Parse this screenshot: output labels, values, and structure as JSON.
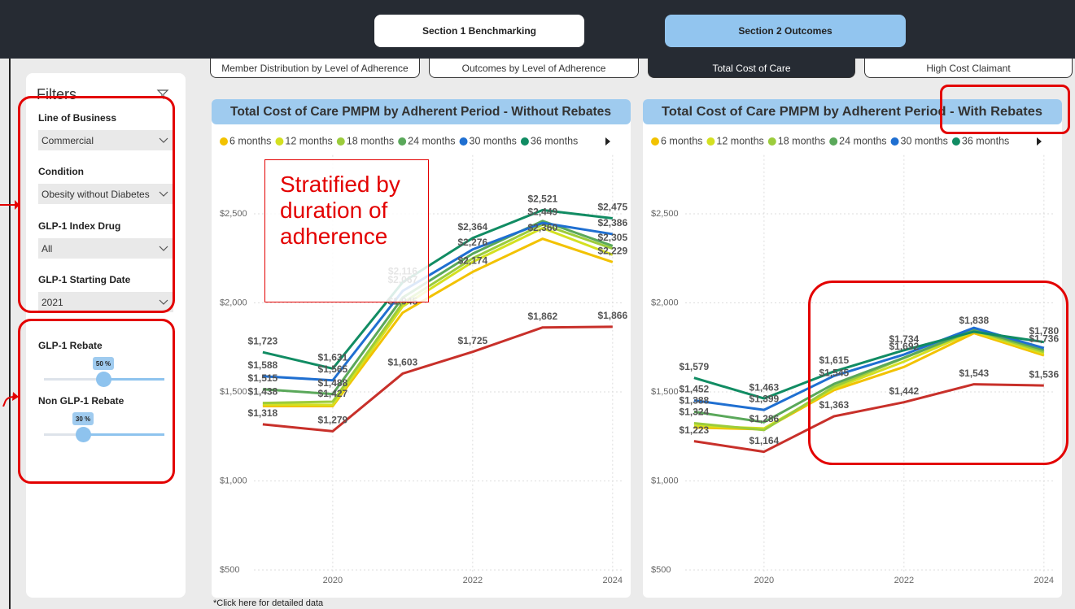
{
  "nav": {
    "buttons": [
      "Section 1 Benchmarking",
      "Section 2 Outcomes"
    ],
    "tabs": [
      "Member Distribution by Level of Adherence",
      "Outcomes by Level of Adherence",
      "Total Cost of Care",
      "High Cost Claimant"
    ]
  },
  "filters": {
    "title": "Filters",
    "fields": [
      {
        "label": "Line of Business",
        "value": "Commercial"
      },
      {
        "label": "Condition",
        "value": "Obesity without Diabetes"
      },
      {
        "label": "GLP-1 Index Drug",
        "value": "All"
      },
      {
        "label": "GLP-1 Starting Date",
        "value": "2021"
      }
    ],
    "sliders": [
      {
        "label": "GLP-1 Rebate",
        "value_label": "50 %"
      },
      {
        "label": "Non GLP-1 Rebate",
        "value_label": "30 %"
      }
    ]
  },
  "annotation": "Stratified by duration of adherence",
  "footer": "*Click here for detailed data",
  "chart_data": [
    {
      "type": "line",
      "title": "Total Cost of Care PMPM by Adherent Period - Without Rebates",
      "x": [
        2019,
        2020,
        2021,
        2022,
        2023,
        2024
      ],
      "xlim": [
        2018.35,
        2024.2
      ],
      "xticks": [
        2020,
        2022,
        2024
      ],
      "ylim": [
        480,
        2830
      ],
      "yticks": [
        {
          "value": 500,
          "label": "$500"
        },
        {
          "value": 1000,
          "label": "$1,000"
        },
        {
          "value": 1500,
          "label": "$1,500"
        },
        {
          "value": 2000,
          "label": "$2,000"
        },
        {
          "value": 2500,
          "label": "$2,500"
        }
      ],
      "grid": true,
      "series": [
        {
          "name": "6 months",
          "color": "#f2c200",
          "values": [
            1420,
            1420,
            1945,
            2174,
            2360,
            2229
          ],
          "value_labels": [
            null,
            null,
            "$1,945",
            "$2,174",
            "$2,360",
            "$2,229"
          ]
        },
        {
          "name": "12 months",
          "color": "#d4e021",
          "values": [
            1430,
            1427,
            1980,
            2230,
            2420,
            2270
          ],
          "value_labels": [
            null,
            "$1,427",
            null,
            null,
            null,
            null
          ]
        },
        {
          "name": "18 months",
          "color": "#9ccc3c",
          "values": [
            1438,
            1445,
            2000,
            2250,
            2440,
            2305
          ],
          "value_labels": [
            "$1,438",
            null,
            null,
            null,
            null,
            "$2,305"
          ]
        },
        {
          "name": "24 months",
          "color": "#5aa85a",
          "values": [
            1515,
            1488,
            2030,
            2276,
            2460,
            2320
          ],
          "value_labels": [
            "$1,515",
            "$1,488",
            null,
            "$2,276",
            null,
            null
          ]
        },
        {
          "name": "30 months",
          "color": "#1f6fd1",
          "values": [
            1588,
            1565,
            2067,
            2300,
            2449,
            2386
          ],
          "value_labels": [
            "$1,588",
            "$1,565",
            "$2,067",
            null,
            "$2,449",
            "$2,386"
          ]
        },
        {
          "name": "36 months",
          "color": "#118c63",
          "values": [
            1723,
            1631,
            2116,
            2364,
            2521,
            2475
          ],
          "value_labels": [
            "$1,723",
            "$1,631",
            "$2,116",
            "$2,364",
            "$2,521",
            "$2,475"
          ]
        },
        {
          "color": "#c8302a",
          "values": [
            1318,
            1279,
            1603,
            1725,
            1862,
            1866
          ],
          "value_labels": [
            "$1,318",
            "$1,279",
            "$1,603",
            "$1,725",
            "$1,862",
            "$1,866"
          ]
        }
      ]
    },
    {
      "type": "line",
      "title": "Total Cost of Care PMPM by Adherent Period - With Rebates",
      "x": [
        2019,
        2020,
        2021,
        2022,
        2023,
        2024
      ],
      "xlim": [
        2018.35,
        2024.2
      ],
      "xticks": [
        2020,
        2022,
        2024
      ],
      "ylim": [
        480,
        2830
      ],
      "yticks": [
        {
          "value": 500,
          "label": "$500"
        },
        {
          "value": 1000,
          "label": "$1,000"
        },
        {
          "value": 1500,
          "label": "$1,500"
        },
        {
          "value": 2000,
          "label": "$2,000"
        },
        {
          "value": 2500,
          "label": "$2,500"
        }
      ],
      "grid": true,
      "series": [
        {
          "name": "6 months",
          "color": "#f2c200",
          "values": [
            1300,
            1290,
            1510,
            1640,
            1830,
            1705
          ],
          "value_labels": [
            null,
            null,
            null,
            null,
            null,
            null
          ]
        },
        {
          "name": "12 months",
          "color": "#d4e021",
          "values": [
            1310,
            1295,
            1520,
            1670,
            1840,
            1715
          ],
          "value_labels": [
            null,
            null,
            null,
            null,
            null,
            null
          ]
        },
        {
          "name": "18 months",
          "color": "#9ccc3c",
          "values": [
            1324,
            1286,
            1530,
            1690,
            1845,
            1725
          ],
          "value_labels": [
            "$1,324",
            "$1,286",
            null,
            null,
            null,
            null
          ]
        },
        {
          "name": "24 months",
          "color": "#5aa85a",
          "values": [
            1388,
            1330,
            1545,
            1692,
            1850,
            1736
          ],
          "value_labels": [
            "$1,388",
            null,
            "$1,545",
            "$1,692",
            null,
            "$1,736"
          ]
        },
        {
          "name": "30 months",
          "color": "#1f6fd1",
          "values": [
            1452,
            1399,
            1590,
            1710,
            1860,
            1746
          ],
          "value_labels": [
            "$1,452",
            "$1,399",
            null,
            null,
            null,
            null
          ]
        },
        {
          "name": "36 months",
          "color": "#118c63",
          "values": [
            1579,
            1463,
            1615,
            1734,
            1838,
            1780
          ],
          "value_labels": [
            "$1,579",
            "$1,463",
            "$1,615",
            "$1,734",
            "$1,838",
            "$1,780"
          ]
        },
        {
          "color": "#c8302a",
          "values": [
            1223,
            1164,
            1363,
            1442,
            1543,
            1536
          ],
          "value_labels": [
            "$1,223",
            "$1,164",
            "$1,363",
            "$1,442",
            "$1,543",
            "$1,536"
          ]
        }
      ]
    }
  ]
}
